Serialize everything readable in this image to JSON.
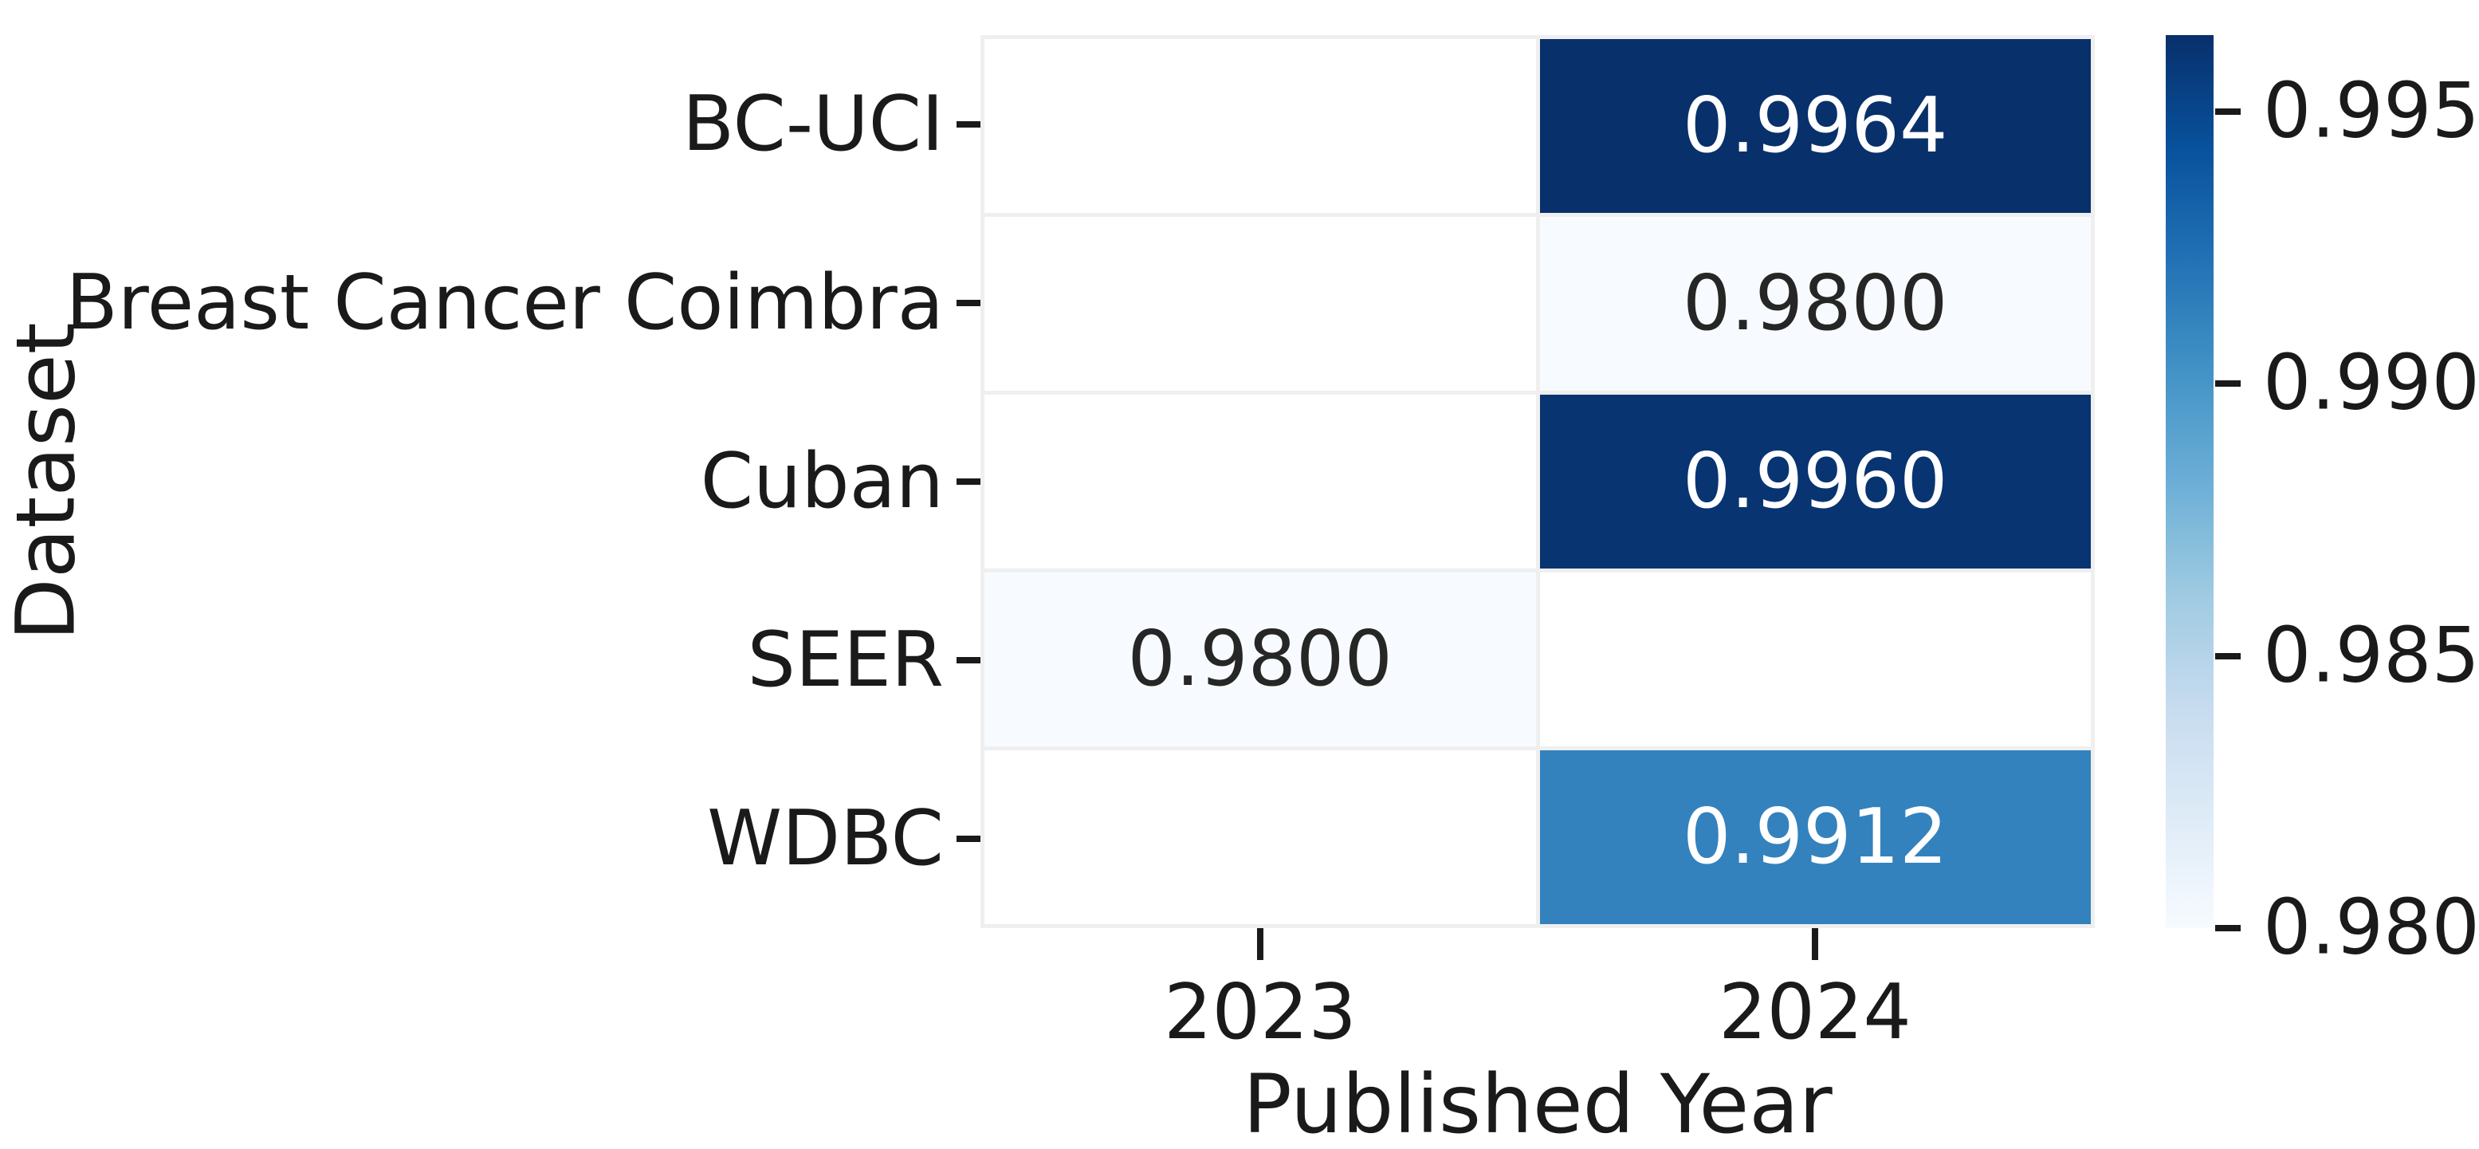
{
  "chart_data": {
    "type": "heatmap",
    "title": "",
    "xlabel": "Published Year",
    "ylabel": "Dataset",
    "categories_x": [
      "2023",
      "2024"
    ],
    "categories_y": [
      "BC-UCI",
      "Breast Cancer Coimbra",
      "Cuban",
      "SEER",
      "WDBC"
    ],
    "values": [
      [
        null,
        0.9964
      ],
      [
        null,
        0.98
      ],
      [
        null,
        0.996
      ],
      [
        0.98,
        null
      ],
      [
        null,
        0.9912
      ]
    ],
    "annotation_format": "4 decimals",
    "grid_line_color": "#efefef",
    "empty_cell_color": "#ffffff",
    "cells": [
      {
        "row": "BC-UCI",
        "col": "2023",
        "text": "",
        "bg": "#ffffff",
        "fg": "#262626"
      },
      {
        "row": "BC-UCI",
        "col": "2024",
        "text": "0.9964",
        "bg": "#08306b",
        "fg": "#ffffff"
      },
      {
        "row": "Breast Cancer Coimbra",
        "col": "2023",
        "text": "",
        "bg": "#ffffff",
        "fg": "#262626"
      },
      {
        "row": "Breast Cancer Coimbra",
        "col": "2024",
        "text": "0.9800",
        "bg": "#f7fbff",
        "fg": "#262626"
      },
      {
        "row": "Cuban",
        "col": "2023",
        "text": "",
        "bg": "#ffffff",
        "fg": "#262626"
      },
      {
        "row": "Cuban",
        "col": "2024",
        "text": "0.9960",
        "bg": "#083472",
        "fg": "#ffffff"
      },
      {
        "row": "SEER",
        "col": "2023",
        "text": "0.9800",
        "bg": "#f7fbff",
        "fg": "#262626"
      },
      {
        "row": "SEER",
        "col": "2024",
        "text": "",
        "bg": "#ffffff",
        "fg": "#262626"
      },
      {
        "row": "WDBC",
        "col": "2023",
        "text": "",
        "bg": "#ffffff",
        "fg": "#262626"
      },
      {
        "row": "WDBC",
        "col": "2024",
        "text": "0.9912",
        "bg": "#3382bd",
        "fg": "#ffffff"
      }
    ],
    "colorbar": {
      "colormap": "Blues",
      "vmin": 0.98,
      "vmax": 0.9964,
      "ticks": [
        {
          "value": 0.995,
          "label": "0.995"
        },
        {
          "value": 0.99,
          "label": "0.990"
        },
        {
          "value": 0.985,
          "label": "0.985"
        },
        {
          "value": 0.98,
          "label": "0.980"
        }
      ],
      "gradient_top_to_bottom": [
        "#08306b",
        "#08519c",
        "#2171b5",
        "#4292c6",
        "#6baed6",
        "#9ecae1",
        "#c6dbef",
        "#deebf7",
        "#f7fbff"
      ],
      "position": "right"
    },
    "legend": null,
    "grid": false
  }
}
